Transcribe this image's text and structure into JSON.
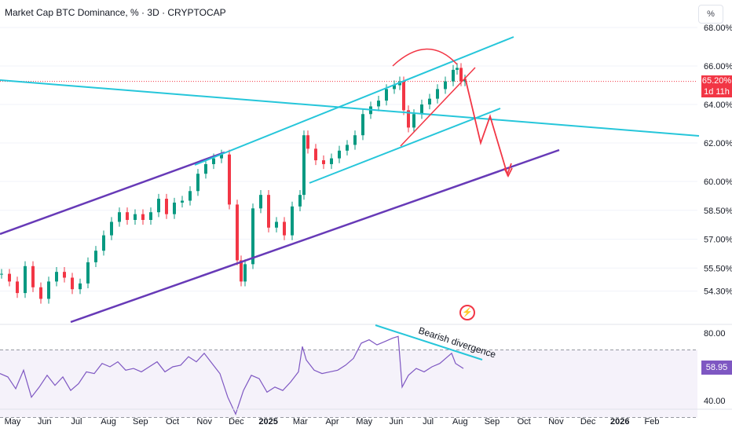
{
  "header": {
    "title": "Market Cap BTC Dominance, % · 3D · CRYPTOCAP",
    "scale_button": "%"
  },
  "price_tag": {
    "value": "65.20%",
    "countdown": "1d 11h"
  },
  "rsi_tag": {
    "value": "58.95"
  },
  "annotation": "Bearish divergence",
  "chart_data": {
    "type": "candlestick",
    "price_axis": {
      "ticks": [
        {
          "label": "68.00%",
          "value": 68.0
        },
        {
          "label": "66.00%",
          "value": 66.0
        },
        {
          "label": "64.00%",
          "value": 64.0
        },
        {
          "label": "62.00%",
          "value": 62.0
        },
        {
          "label": "60.00%",
          "value": 60.0
        },
        {
          "label": "58.50%",
          "value": 58.5
        },
        {
          "label": "57.00%",
          "value": 57.0
        },
        {
          "label": "55.50%",
          "value": 55.5
        },
        {
          "label": "54.30%",
          "value": 54.3
        }
      ]
    },
    "rsi_axis": {
      "ticks": [
        {
          "label": "80.00",
          "value": 80
        },
        {
          "label": "40.00",
          "value": 40
        }
      ],
      "bands": [
        70,
        30
      ]
    },
    "time_axis": [
      "May",
      "Jun",
      "Jul",
      "Aug",
      "Sep",
      "Oct",
      "Nov",
      "Dec",
      "2025",
      "Mar",
      "Apr",
      "May",
      "Jun",
      "Jul",
      "Aug",
      "Sep",
      "Oct",
      "Nov",
      "Dec",
      "2026",
      "Feb"
    ],
    "price_series": [
      [
        0,
        55.2
      ],
      [
        10,
        54.8
      ],
      [
        20,
        54.2
      ],
      [
        30,
        55.6
      ],
      [
        40,
        54.5
      ],
      [
        50,
        53.9
      ],
      [
        60,
        54.8
      ],
      [
        70,
        55.3
      ],
      [
        80,
        55.0
      ],
      [
        90,
        54.4
      ],
      [
        100,
        54.7
      ],
      [
        110,
        55.8
      ],
      [
        120,
        56.4
      ],
      [
        130,
        57.2
      ],
      [
        140,
        57.9
      ],
      [
        150,
        58.4
      ],
      [
        160,
        58.0
      ],
      [
        170,
        58.3
      ],
      [
        180,
        58.0
      ],
      [
        190,
        58.4
      ],
      [
        200,
        59.1
      ],
      [
        210,
        58.3
      ],
      [
        220,
        58.9
      ],
      [
        230,
        59.0
      ],
      [
        240,
        59.5
      ],
      [
        250,
        60.4
      ],
      [
        260,
        60.9
      ],
      [
        270,
        61.2
      ],
      [
        280,
        61.4
      ],
      [
        290,
        58.8
      ],
      [
        300,
        55.9
      ],
      [
        305,
        54.8
      ],
      [
        310,
        55.7
      ],
      [
        320,
        58.6
      ],
      [
        330,
        59.3
      ],
      [
        340,
        57.6
      ],
      [
        350,
        57.9
      ],
      [
        360,
        57.2
      ],
      [
        370,
        58.7
      ],
      [
        380,
        59.3
      ],
      [
        385,
        62.4
      ],
      [
        390,
        61.7
      ],
      [
        400,
        61.1
      ],
      [
        410,
        60.9
      ],
      [
        420,
        61.2
      ],
      [
        430,
        61.6
      ],
      [
        440,
        61.9
      ],
      [
        450,
        62.4
      ],
      [
        460,
        63.5
      ],
      [
        470,
        63.9
      ],
      [
        480,
        64.2
      ],
      [
        490,
        64.8
      ],
      [
        500,
        65.0
      ],
      [
        507,
        65.2
      ],
      [
        512,
        63.7
      ],
      [
        518,
        62.8
      ],
      [
        525,
        63.5
      ],
      [
        535,
        64.0
      ],
      [
        545,
        64.3
      ],
      [
        555,
        64.8
      ],
      [
        565,
        65.2
      ],
      [
        575,
        65.8
      ],
      [
        580,
        65.9
      ],
      [
        585,
        65.2
      ],
      [
        590,
        65.3
      ]
    ],
    "rsi_series": [
      [
        0,
        56
      ],
      [
        10,
        54
      ],
      [
        20,
        47
      ],
      [
        30,
        58
      ],
      [
        40,
        42
      ],
      [
        50,
        48
      ],
      [
        60,
        55
      ],
      [
        70,
        49
      ],
      [
        80,
        54
      ],
      [
        90,
        46
      ],
      [
        100,
        50
      ],
      [
        110,
        57
      ],
      [
        120,
        56
      ],
      [
        130,
        62
      ],
      [
        140,
        60
      ],
      [
        150,
        63
      ],
      [
        160,
        58
      ],
      [
        170,
        59
      ],
      [
        180,
        57
      ],
      [
        190,
        60
      ],
      [
        200,
        63
      ],
      [
        210,
        57
      ],
      [
        220,
        60
      ],
      [
        230,
        61
      ],
      [
        240,
        66
      ],
      [
        250,
        63
      ],
      [
        260,
        68
      ],
      [
        270,
        62
      ],
      [
        280,
        56
      ],
      [
        290,
        42
      ],
      [
        300,
        32
      ],
      [
        310,
        46
      ],
      [
        320,
        55
      ],
      [
        330,
        53
      ],
      [
        340,
        45
      ],
      [
        350,
        48
      ],
      [
        360,
        46
      ],
      [
        370,
        51
      ],
      [
        380,
        57
      ],
      [
        385,
        72
      ],
      [
        390,
        64
      ],
      [
        400,
        58
      ],
      [
        410,
        56
      ],
      [
        420,
        57
      ],
      [
        430,
        58
      ],
      [
        440,
        61
      ],
      [
        450,
        65
      ],
      [
        460,
        74
      ],
      [
        470,
        76
      ],
      [
        480,
        73
      ],
      [
        490,
        75
      ],
      [
        500,
        77
      ],
      [
        507,
        78
      ],
      [
        512,
        48
      ],
      [
        520,
        55
      ],
      [
        530,
        59
      ],
      [
        540,
        57
      ],
      [
        550,
        60
      ],
      [
        560,
        62
      ],
      [
        570,
        66
      ],
      [
        575,
        68
      ],
      [
        580,
        62
      ],
      [
        590,
        59
      ]
    ]
  }
}
